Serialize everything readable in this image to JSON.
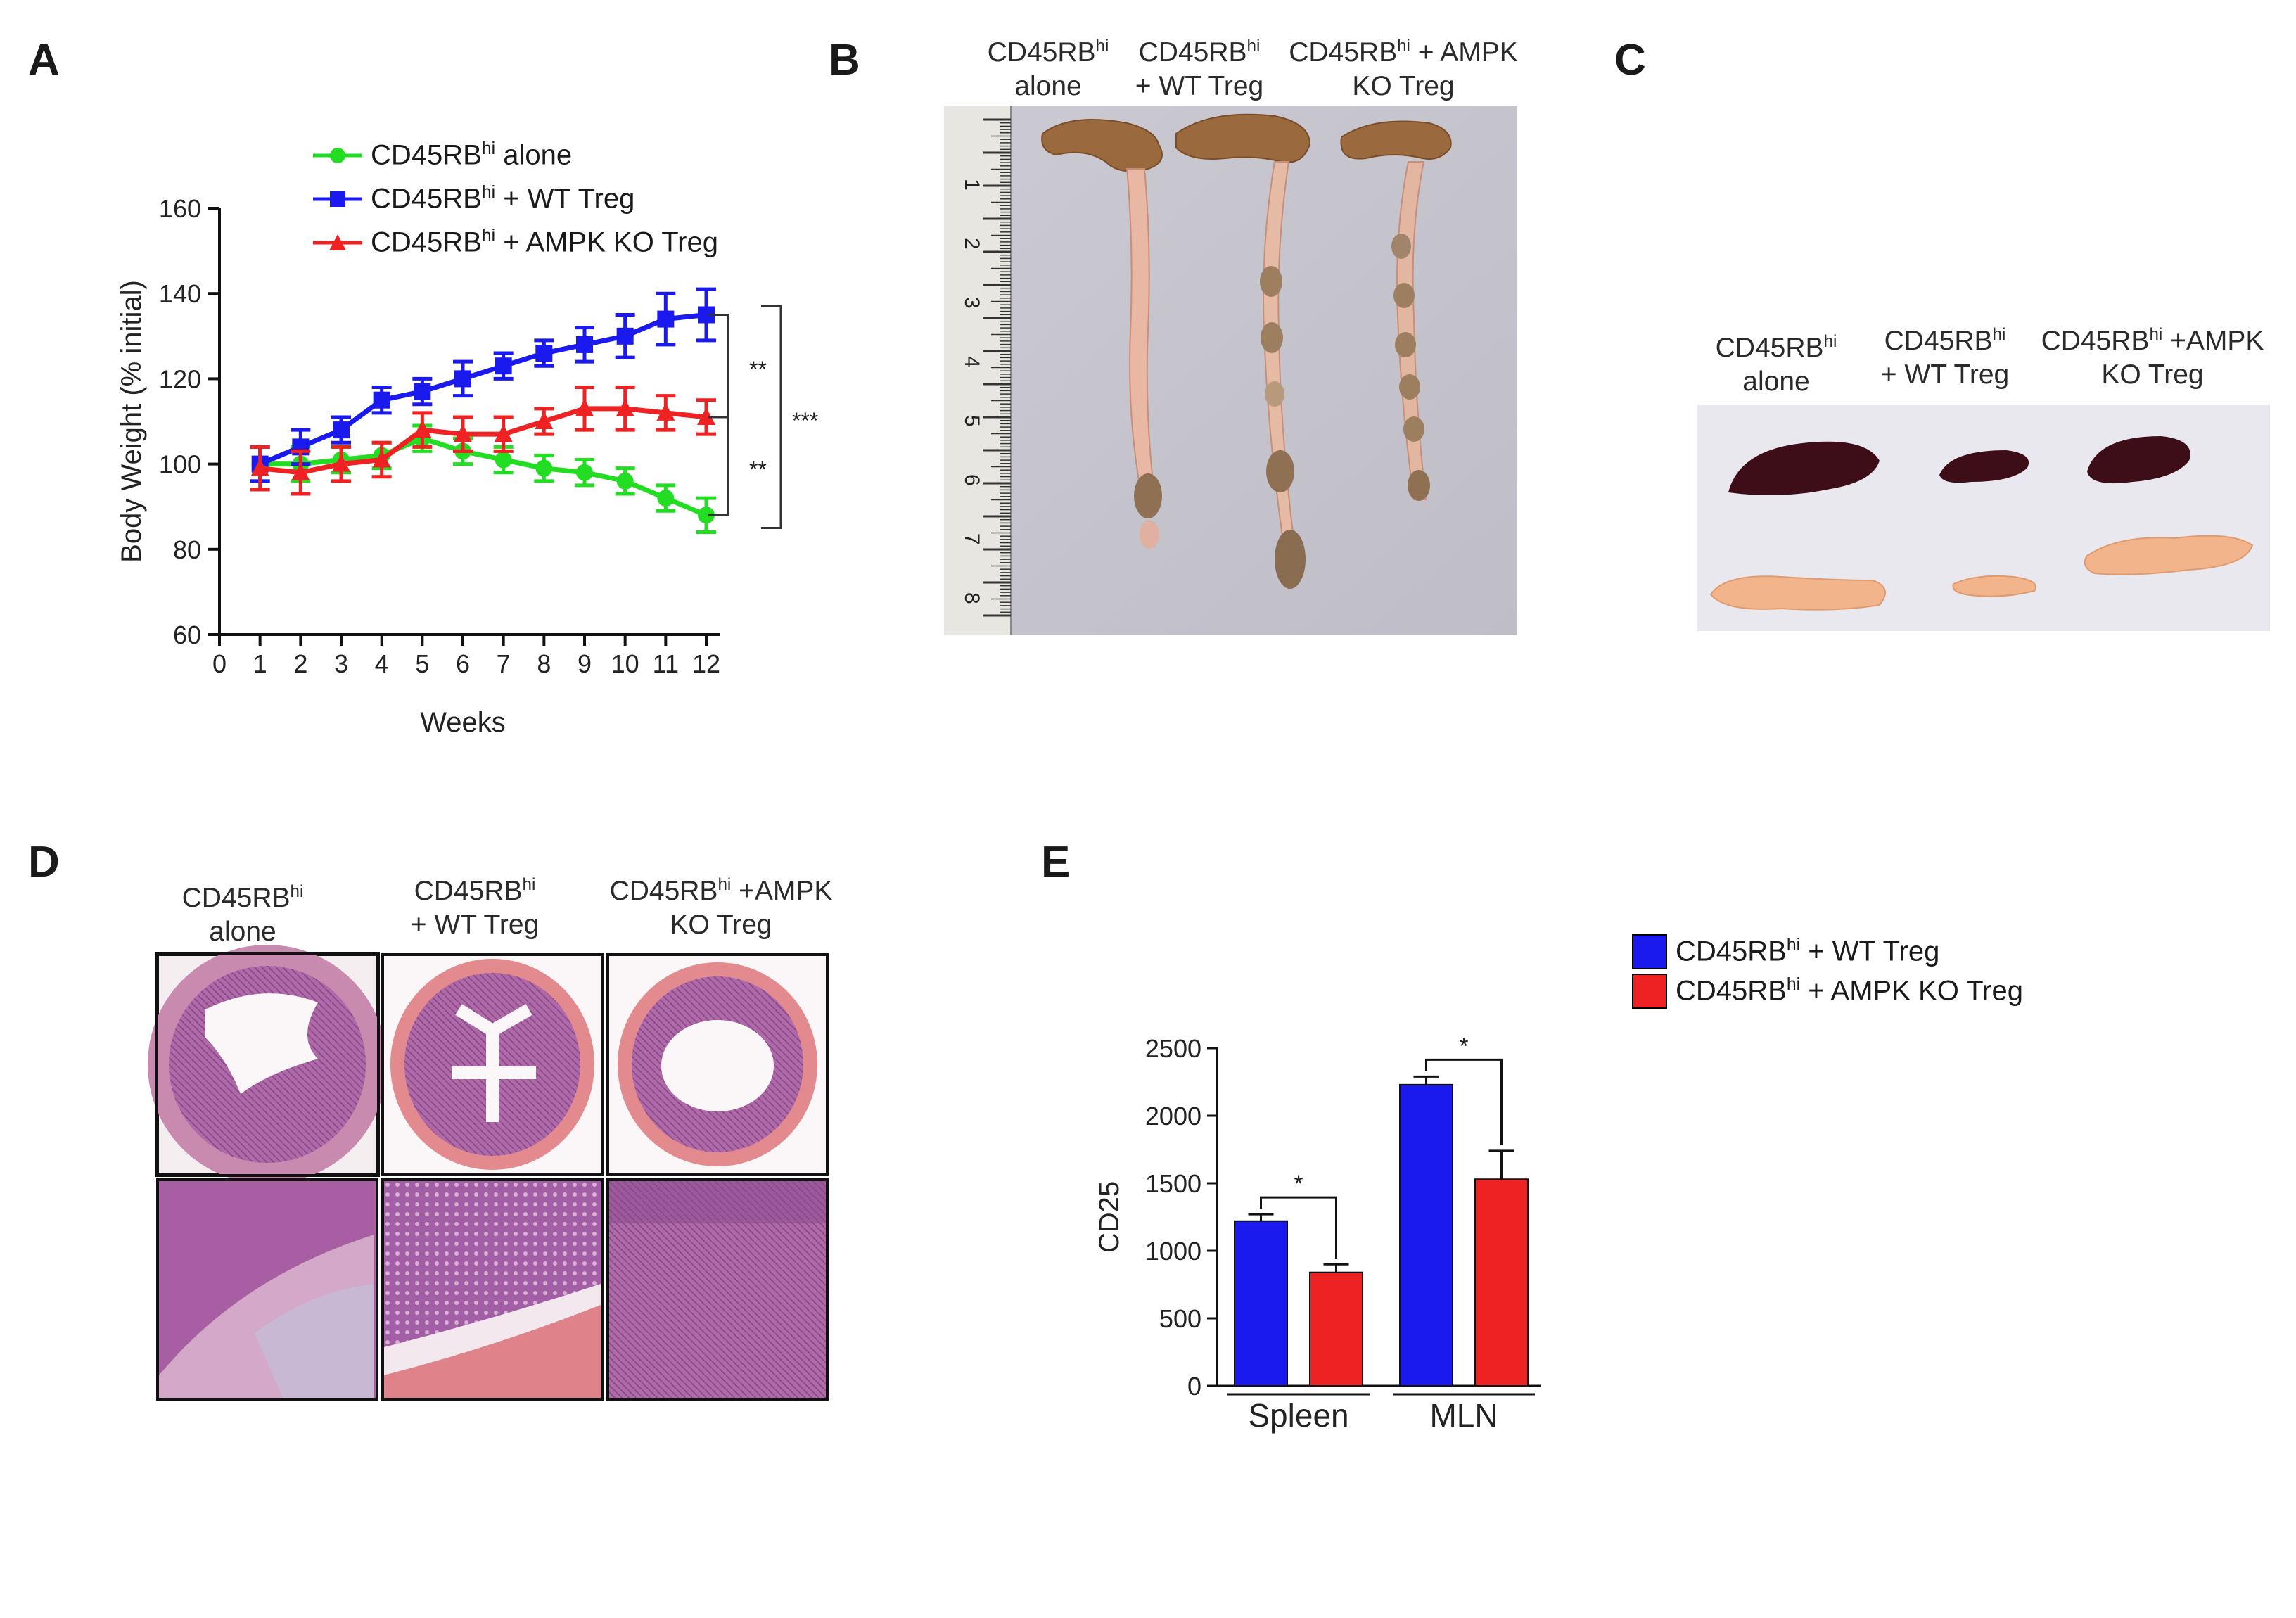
{
  "panels": {
    "a": {
      "letter": "A"
    },
    "b": {
      "letter": "B",
      "labels": [
        {
          "base": "CD45RB",
          "sup": "hi",
          "line2": "alone"
        },
        {
          "base": "CD45RB",
          "sup": "hi",
          "line2": "+ WT Treg"
        },
        {
          "base": "CD45RB",
          "sup": "hi",
          "rest": " + AMPK",
          "line2": "KO Treg"
        }
      ],
      "ruler_numbers": [
        "1",
        "2",
        "3",
        "4",
        "5",
        "6",
        "7",
        "8"
      ]
    },
    "c": {
      "letter": "C",
      "labels": [
        {
          "base": "CD45RB",
          "sup": "hi",
          "line2": "alone"
        },
        {
          "base": "CD45RB",
          "sup": "hi",
          "line2": "+ WT Treg"
        },
        {
          "base": "CD45RB",
          "sup": "hi",
          "rest": " +AMPK",
          "line2": "KO Treg"
        }
      ]
    },
    "d": {
      "letter": "D",
      "labels": [
        {
          "base": "CD45RB",
          "sup": "hi",
          "line2": "alone"
        },
        {
          "base": "CD45RB",
          "sup": "hi",
          "line2": "+ WT Treg"
        },
        {
          "base": "CD45RB",
          "sup": "hi",
          "rest": " +AMPK",
          "line2": "KO Treg"
        }
      ]
    },
    "e": {
      "letter": "E"
    }
  },
  "chart_data": [
    {
      "type": "line",
      "xlabel": "Weeks",
      "ylabel": "Body Weight (% initial)",
      "x": [
        1,
        2,
        3,
        4,
        5,
        6,
        7,
        8,
        9,
        10,
        11,
        12
      ],
      "xlim": [
        0,
        12
      ],
      "ylim": [
        60,
        160
      ],
      "yticks": [
        60,
        80,
        100,
        120,
        140,
        160
      ],
      "xticks": [
        0,
        1,
        2,
        3,
        4,
        5,
        6,
        7,
        8,
        9,
        10,
        11,
        12
      ],
      "legend_position": "top",
      "series": [
        {
          "name": "CD45RB",
          "name_sup": "hi",
          "name_rest": " alone",
          "color": "#22dd22",
          "marker": "circle",
          "values": [
            100,
            100,
            101,
            102,
            106,
            103,
            101,
            99,
            98,
            96,
            92,
            88
          ],
          "errors": [
            4,
            4,
            3,
            3,
            3,
            3,
            3,
            3,
            3,
            3,
            3,
            4
          ]
        },
        {
          "name": "CD45RB",
          "name_sup": "hi",
          "name_rest": " + WT Treg",
          "color": "#1a1aee",
          "marker": "square",
          "values": [
            100,
            104,
            108,
            115,
            117,
            120,
            123,
            126,
            128,
            130,
            134,
            135
          ],
          "errors": [
            4,
            4,
            3,
            3,
            3,
            4,
            3,
            3,
            4,
            5,
            6,
            6
          ]
        },
        {
          "name": "CD45RB",
          "name_sup": "hi",
          "name_rest": " + AMPK KO Treg",
          "color": "#ee2222",
          "marker": "triangle",
          "values": [
            99,
            98,
            100,
            101,
            108,
            107,
            107,
            110,
            113,
            113,
            112,
            111
          ],
          "errors": [
            5,
            5,
            4,
            4,
            4,
            4,
            4,
            3,
            5,
            5,
            4,
            4
          ]
        }
      ],
      "significance": [
        {
          "label": "**",
          "between": "WT Treg vs AMPK KO Treg"
        },
        {
          "label": "**",
          "between": "AMPK KO Treg vs alone"
        },
        {
          "label": "***",
          "between": "WT Treg vs alone"
        }
      ]
    },
    {
      "type": "bar",
      "ylabel": "CD25",
      "categories": [
        "Spleen",
        "MLN"
      ],
      "ylim": [
        0,
        2500
      ],
      "yticks": [
        0,
        500,
        1000,
        1500,
        2000,
        2500
      ],
      "legend_position": "top-right",
      "series": [
        {
          "name": "CD45RB",
          "name_sup": "hi",
          "name_rest": " + WT Treg",
          "color": "#1a1aee",
          "values": [
            1220,
            2230
          ],
          "errors": [
            50,
            60
          ]
        },
        {
          "name": "CD45RB",
          "name_sup": "hi",
          "name_rest": " + AMPK KO Treg",
          "color": "#ee2222",
          "values": [
            840,
            1530
          ],
          "errors": [
            60,
            210
          ]
        }
      ],
      "significance": [
        {
          "category": "Spleen",
          "label": "*"
        },
        {
          "category": "MLN",
          "label": "*"
        }
      ]
    }
  ]
}
